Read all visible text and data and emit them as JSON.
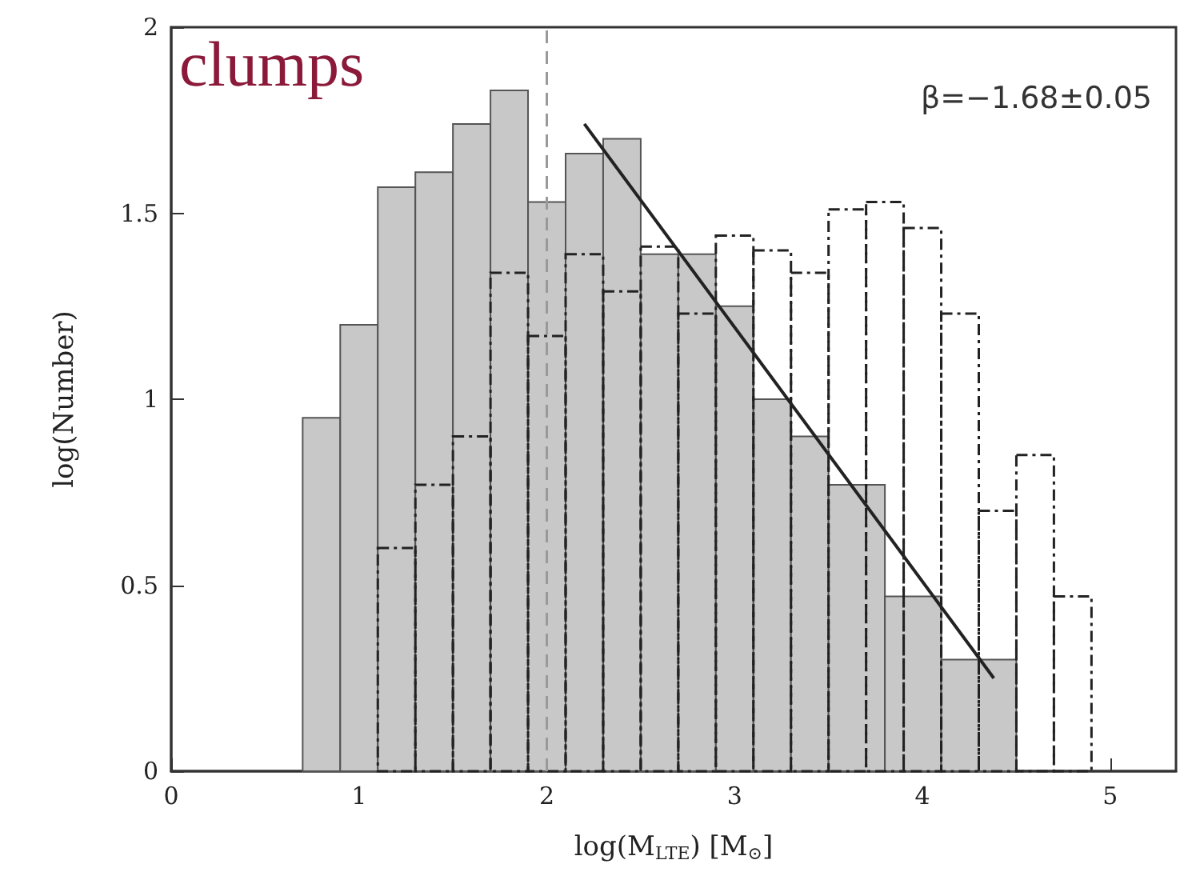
{
  "chart_data": {
    "type": "histogram",
    "xlabel": "log(M$_{LTE}$) [M$_{⊙}$]",
    "ylabel": "log(Number)",
    "xlim": [
      0,
      5.35
    ],
    "xticks": [
      0,
      1,
      2,
      3,
      4,
      5
    ],
    "ylim": [
      0,
      2
    ],
    "yticks": [
      0,
      0.5,
      1,
      1.5,
      2
    ],
    "series": [
      {
        "color": "#c8c8c8",
        "bins": [
          0.7,
          0.9,
          1.1,
          1.3,
          1.5,
          1.7,
          1.9,
          2.1,
          2.3,
          2.5,
          2.7,
          2.9,
          3.1,
          3.3,
          3.5,
          3.8,
          4.1,
          4.5
        ],
        "values": [
          0.95,
          1.2,
          1.57,
          1.61,
          1.74,
          1.83,
          1.53,
          1.66,
          1.7,
          1.39,
          1.39,
          1.25,
          1.0,
          0.9,
          0.77,
          0.47,
          0.3
        ]
      },
      {
        "color": "#222222",
        "line_style": "dashdot",
        "bins": [
          1.1,
          1.3,
          1.5,
          1.7,
          1.9,
          2.1,
          2.3,
          2.5,
          2.7,
          2.9,
          3.1,
          3.3,
          3.5,
          3.7,
          3.9,
          4.1,
          4.3,
          4.5,
          4.7,
          4.9
        ],
        "values": [
          0.6,
          0.77,
          0.9,
          1.34,
          1.17,
          1.39,
          1.29,
          1.41,
          1.23,
          1.44,
          1.4,
          1.34,
          1.51,
          1.53,
          1.46,
          1.23,
          0.7,
          0.85,
          0.47
        ]
      },
      {
        "type": "line",
        "color": "#222222",
        "x": [
          2.2,
          4.38
        ],
        "values": [
          1.74,
          0.25
        ]
      }
    ],
    "ref_lines": [
      {
        "axis": "x",
        "value": 2,
        "color": "#999999",
        "line_style": "dashed"
      }
    ],
    "annotations": [
      "clumps",
      "β=−1.68±0.05"
    ]
  }
}
